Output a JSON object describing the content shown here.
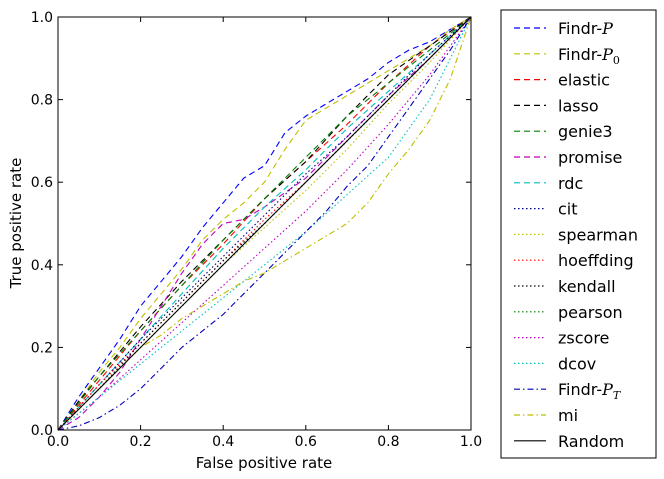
{
  "chart_data": {
    "type": "line",
    "title": "",
    "xlabel": "False positive rate",
    "ylabel": "True positive rate",
    "xlim": [
      0,
      1
    ],
    "ylim": [
      0,
      1
    ],
    "xticks": [
      "0.0",
      "0.2",
      "0.4",
      "0.6",
      "0.8",
      "1.0"
    ],
    "yticks": [
      "0.0",
      "0.2",
      "0.4",
      "0.6",
      "0.8",
      "1.0"
    ],
    "legend_position": "outside-right",
    "series": [
      {
        "name": "Findr-P",
        "base": "Findr-",
        "sub": "P",
        "subscript": "",
        "color": "#0000ff",
        "style": "dashed",
        "points": [
          [
            0,
            0
          ],
          [
            0.05,
            0.08
          ],
          [
            0.1,
            0.15
          ],
          [
            0.15,
            0.22
          ],
          [
            0.2,
            0.3
          ],
          [
            0.25,
            0.36
          ],
          [
            0.3,
            0.42
          ],
          [
            0.35,
            0.49
          ],
          [
            0.4,
            0.55
          ],
          [
            0.45,
            0.61
          ],
          [
            0.5,
            0.64
          ],
          [
            0.55,
            0.72
          ],
          [
            0.6,
            0.76
          ],
          [
            0.65,
            0.79
          ],
          [
            0.7,
            0.82
          ],
          [
            0.75,
            0.85
          ],
          [
            0.8,
            0.89
          ],
          [
            0.85,
            0.92
          ],
          [
            0.9,
            0.94
          ],
          [
            0.95,
            0.97
          ],
          [
            1,
            1
          ]
        ]
      },
      {
        "name": "Findr-P0",
        "base": "Findr-",
        "sub": "P",
        "subscript": "0",
        "color": "#bfbf00",
        "style": "dashed",
        "points": [
          [
            0,
            0
          ],
          [
            0.05,
            0.07
          ],
          [
            0.1,
            0.14
          ],
          [
            0.15,
            0.2
          ],
          [
            0.2,
            0.27
          ],
          [
            0.25,
            0.33
          ],
          [
            0.3,
            0.39
          ],
          [
            0.35,
            0.46
          ],
          [
            0.4,
            0.51
          ],
          [
            0.45,
            0.55
          ],
          [
            0.5,
            0.6
          ],
          [
            0.55,
            0.68
          ],
          [
            0.6,
            0.75
          ],
          [
            0.65,
            0.78
          ],
          [
            0.7,
            0.81
          ],
          [
            0.75,
            0.84
          ],
          [
            0.8,
            0.87
          ],
          [
            0.85,
            0.9
          ],
          [
            0.9,
            0.93
          ],
          [
            0.95,
            0.97
          ],
          [
            1,
            1
          ]
        ]
      },
      {
        "name": "elastic",
        "color": "#ff0000",
        "style": "dashed",
        "points": [
          [
            0,
            0
          ],
          [
            0.1,
            0.12
          ],
          [
            0.2,
            0.24
          ],
          [
            0.3,
            0.35
          ],
          [
            0.4,
            0.45
          ],
          [
            0.5,
            0.56
          ],
          [
            0.6,
            0.65
          ],
          [
            0.7,
            0.74
          ],
          [
            0.8,
            0.84
          ],
          [
            0.9,
            0.93
          ],
          [
            1,
            1
          ]
        ]
      },
      {
        "name": "lasso",
        "color": "#000000",
        "style": "dashed",
        "points": [
          [
            0,
            0
          ],
          [
            0.05,
            0.07
          ],
          [
            0.1,
            0.13
          ],
          [
            0.2,
            0.25
          ],
          [
            0.3,
            0.36
          ],
          [
            0.4,
            0.46
          ],
          [
            0.5,
            0.56
          ],
          [
            0.6,
            0.65
          ],
          [
            0.7,
            0.76
          ],
          [
            0.8,
            0.86
          ],
          [
            0.9,
            0.93
          ],
          [
            1,
            1
          ]
        ]
      },
      {
        "name": "genie3",
        "color": "#008000",
        "style": "dashed",
        "points": [
          [
            0,
            0
          ],
          [
            0.1,
            0.13
          ],
          [
            0.2,
            0.24
          ],
          [
            0.3,
            0.35
          ],
          [
            0.4,
            0.46
          ],
          [
            0.5,
            0.56
          ],
          [
            0.6,
            0.66
          ],
          [
            0.7,
            0.76
          ],
          [
            0.8,
            0.84
          ],
          [
            0.9,
            0.92
          ],
          [
            1,
            1
          ]
        ]
      },
      {
        "name": "promise",
        "color": "#bf00bf",
        "style": "dashed",
        "points": [
          [
            0,
            0
          ],
          [
            0.05,
            0.03
          ],
          [
            0.1,
            0.08
          ],
          [
            0.15,
            0.14
          ],
          [
            0.2,
            0.22
          ],
          [
            0.25,
            0.3
          ],
          [
            0.3,
            0.38
          ],
          [
            0.35,
            0.45
          ],
          [
            0.4,
            0.5
          ],
          [
            0.45,
            0.51
          ],
          [
            0.5,
            0.54
          ],
          [
            0.6,
            0.61
          ],
          [
            0.7,
            0.71
          ],
          [
            0.8,
            0.81
          ],
          [
            0.9,
            0.9
          ],
          [
            1,
            1
          ]
        ]
      },
      {
        "name": "rdc",
        "color": "#00bfbf",
        "style": "dashed",
        "points": [
          [
            0,
            0
          ],
          [
            0.1,
            0.11
          ],
          [
            0.2,
            0.22
          ],
          [
            0.3,
            0.33
          ],
          [
            0.4,
            0.44
          ],
          [
            0.5,
            0.54
          ],
          [
            0.6,
            0.63
          ],
          [
            0.7,
            0.73
          ],
          [
            0.8,
            0.82
          ],
          [
            0.9,
            0.91
          ],
          [
            1,
            1
          ]
        ]
      },
      {
        "name": "cit",
        "color": "#00007f",
        "style": "dotted",
        "points": [
          [
            0,
            0
          ],
          [
            0.1,
            0.11
          ],
          [
            0.2,
            0.22
          ],
          [
            0.3,
            0.32
          ],
          [
            0.4,
            0.42
          ],
          [
            0.5,
            0.52
          ],
          [
            0.6,
            0.62
          ],
          [
            0.7,
            0.71
          ],
          [
            0.8,
            0.81
          ],
          [
            0.9,
            0.91
          ],
          [
            1,
            1
          ]
        ]
      },
      {
        "name": "spearman",
        "color": "#bfbf00",
        "style": "dotted",
        "points": [
          [
            0,
            0
          ],
          [
            0.1,
            0.1
          ],
          [
            0.2,
            0.2
          ],
          [
            0.3,
            0.3
          ],
          [
            0.4,
            0.4
          ],
          [
            0.5,
            0.49
          ],
          [
            0.6,
            0.58
          ],
          [
            0.7,
            0.68
          ],
          [
            0.8,
            0.79
          ],
          [
            0.9,
            0.89
          ],
          [
            1,
            1
          ]
        ]
      },
      {
        "name": "hoeffding",
        "color": "#ff0000",
        "style": "dotted",
        "points": [
          [
            0,
            0
          ],
          [
            0.1,
            0.11
          ],
          [
            0.2,
            0.21
          ],
          [
            0.3,
            0.31
          ],
          [
            0.4,
            0.41
          ],
          [
            0.5,
            0.51
          ],
          [
            0.6,
            0.6
          ],
          [
            0.7,
            0.7
          ],
          [
            0.8,
            0.8
          ],
          [
            0.9,
            0.9
          ],
          [
            1,
            1
          ]
        ]
      },
      {
        "name": "kendall",
        "color": "#000000",
        "style": "dotted",
        "points": [
          [
            0,
            0
          ],
          [
            0.1,
            0.1
          ],
          [
            0.2,
            0.21
          ],
          [
            0.3,
            0.31
          ],
          [
            0.4,
            0.41
          ],
          [
            0.5,
            0.5
          ],
          [
            0.6,
            0.6
          ],
          [
            0.7,
            0.7
          ],
          [
            0.8,
            0.8
          ],
          [
            0.9,
            0.9
          ],
          [
            1,
            1
          ]
        ]
      },
      {
        "name": "pearson",
        "color": "#008000",
        "style": "dotted",
        "points": [
          [
            0,
            0
          ],
          [
            0.1,
            0.1
          ],
          [
            0.2,
            0.2
          ],
          [
            0.3,
            0.3
          ],
          [
            0.4,
            0.4
          ],
          [
            0.5,
            0.5
          ],
          [
            0.6,
            0.6
          ],
          [
            0.7,
            0.7
          ],
          [
            0.8,
            0.8
          ],
          [
            0.9,
            0.9
          ],
          [
            1,
            1
          ]
        ]
      },
      {
        "name": "zscore",
        "color": "#bf00bf",
        "style": "dotted",
        "points": [
          [
            0,
            0
          ],
          [
            0.1,
            0.08
          ],
          [
            0.2,
            0.17
          ],
          [
            0.3,
            0.26
          ],
          [
            0.4,
            0.35
          ],
          [
            0.5,
            0.44
          ],
          [
            0.6,
            0.53
          ],
          [
            0.7,
            0.63
          ],
          [
            0.8,
            0.74
          ],
          [
            0.9,
            0.86
          ],
          [
            1,
            1
          ]
        ]
      },
      {
        "name": "dcov",
        "color": "#00bfbf",
        "style": "dotted",
        "points": [
          [
            0,
            0
          ],
          [
            0.1,
            0.08
          ],
          [
            0.2,
            0.16
          ],
          [
            0.3,
            0.24
          ],
          [
            0.4,
            0.32
          ],
          [
            0.5,
            0.4
          ],
          [
            0.6,
            0.48
          ],
          [
            0.7,
            0.57
          ],
          [
            0.8,
            0.66
          ],
          [
            0.9,
            0.8
          ],
          [
            1,
            1
          ]
        ]
      },
      {
        "name": "Findr-PT",
        "base": "Findr-",
        "sub": "P",
        "subscript": "T",
        "color": "#0000bf",
        "style": "dashdot",
        "points": [
          [
            0,
            0
          ],
          [
            0.05,
            0.01
          ],
          [
            0.1,
            0.03
          ],
          [
            0.15,
            0.06
          ],
          [
            0.2,
            0.1
          ],
          [
            0.25,
            0.15
          ],
          [
            0.3,
            0.2
          ],
          [
            0.35,
            0.24
          ],
          [
            0.4,
            0.28
          ],
          [
            0.45,
            0.33
          ],
          [
            0.5,
            0.38
          ],
          [
            0.55,
            0.43
          ],
          [
            0.6,
            0.48
          ],
          [
            0.65,
            0.53
          ],
          [
            0.7,
            0.59
          ],
          [
            0.75,
            0.64
          ],
          [
            0.8,
            0.71
          ],
          [
            0.85,
            0.78
          ],
          [
            0.9,
            0.85
          ],
          [
            0.95,
            0.92
          ],
          [
            1,
            1
          ]
        ]
      },
      {
        "name": "mi",
        "color": "#bfbf00",
        "style": "dashdot",
        "points": [
          [
            0,
            0
          ],
          [
            0.05,
            0.05
          ],
          [
            0.1,
            0.1
          ],
          [
            0.15,
            0.15
          ],
          [
            0.2,
            0.2
          ],
          [
            0.25,
            0.23
          ],
          [
            0.3,
            0.27
          ],
          [
            0.35,
            0.3
          ],
          [
            0.4,
            0.33
          ],
          [
            0.45,
            0.36
          ],
          [
            0.5,
            0.38
          ],
          [
            0.55,
            0.41
          ],
          [
            0.6,
            0.44
          ],
          [
            0.65,
            0.47
          ],
          [
            0.7,
            0.5
          ],
          [
            0.75,
            0.55
          ],
          [
            0.8,
            0.62
          ],
          [
            0.85,
            0.68
          ],
          [
            0.9,
            0.75
          ],
          [
            0.95,
            0.85
          ],
          [
            1,
            1
          ]
        ]
      },
      {
        "name": "Random",
        "color": "#000000",
        "style": "solid",
        "points": [
          [
            0,
            0
          ],
          [
            1,
            1
          ]
        ]
      }
    ]
  }
}
